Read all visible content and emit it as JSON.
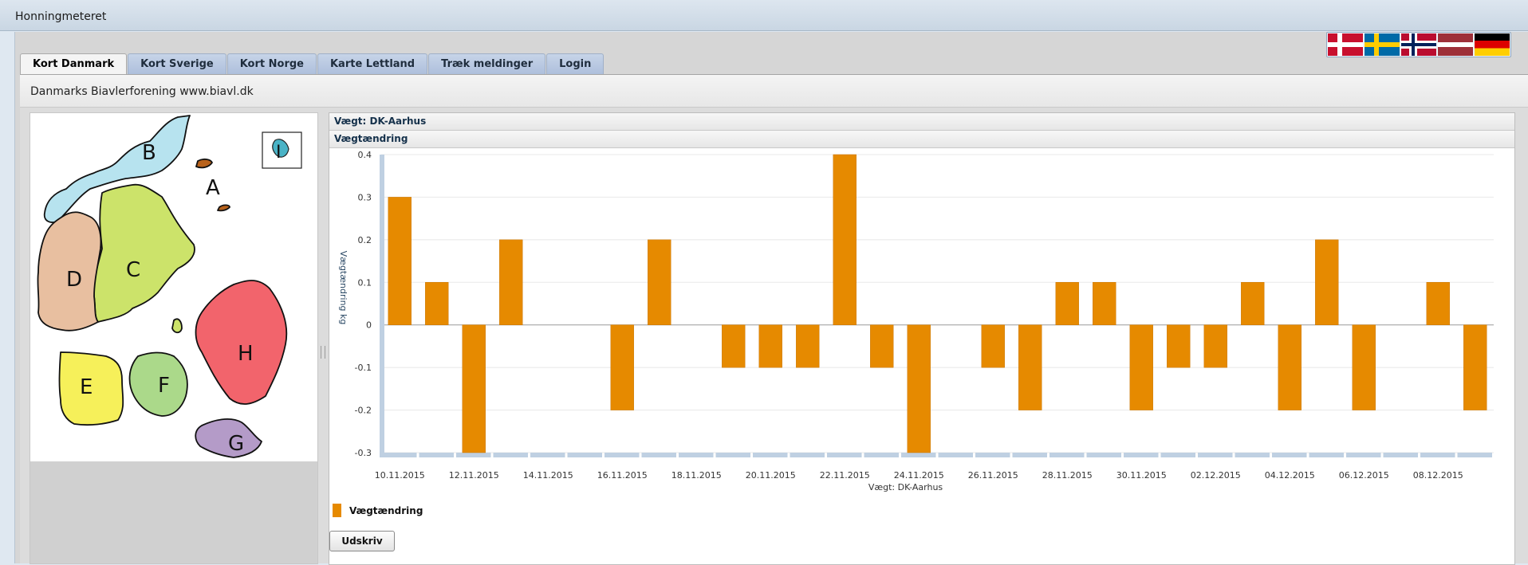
{
  "app": {
    "title": "Honningmeteret"
  },
  "flags": [
    "flag-denmark-icon",
    "flag-sweden-icon",
    "flag-norway-icon",
    "flag-latvia-icon",
    "flag-germany-icon"
  ],
  "tabs": [
    {
      "label": "Kort Danmark",
      "active": true
    },
    {
      "label": "Kort Sverige",
      "active": false
    },
    {
      "label": "Kort Norge",
      "active": false
    },
    {
      "label": "Karte Lettland",
      "active": false
    },
    {
      "label": "Træk meldinger",
      "active": false
    },
    {
      "label": "Login",
      "active": false
    }
  ],
  "org": {
    "text": "Danmarks Biavlerforening www.biavl.dk"
  },
  "map": {
    "regions": [
      "A",
      "B",
      "C",
      "D",
      "E",
      "F",
      "G",
      "H",
      "I"
    ]
  },
  "panel": {
    "header1": "Vægt: DK-Aarhus",
    "header2": "Vægtændring"
  },
  "legend": {
    "label": "Vægtændring",
    "color": "#e68a00"
  },
  "print_button": {
    "label": "Udskriv"
  },
  "chart_data": {
    "type": "bar",
    "xlabel": "Vægt: DK-Aarhus",
    "ylabel": "Vægtændring kg",
    "ylim": [
      -0.3,
      0.4
    ],
    "yticks": [
      "0.4",
      "0.3",
      "0.2",
      "0.1",
      "0",
      "-0.1",
      "-0.2",
      "-0.3"
    ],
    "tick_labels": [
      "10.11.2015",
      "12.11.2015",
      "14.11.2015",
      "16.11.2015",
      "18.11.2015",
      "20.11.2015",
      "22.11.2015",
      "24.11.2015",
      "26.11.2015",
      "28.11.2015",
      "30.11.2015",
      "02.12.2015",
      "04.12.2015",
      "06.12.2015",
      "08.12.2015"
    ],
    "categories": [
      "10.11.2015",
      "11.11.2015",
      "12.11.2015",
      "13.11.2015",
      "14.11.2015",
      "15.11.2015",
      "16.11.2015",
      "17.11.2015",
      "18.11.2015",
      "19.11.2015",
      "20.11.2015",
      "21.11.2015",
      "22.11.2015",
      "23.11.2015",
      "24.11.2015",
      "25.11.2015",
      "26.11.2015",
      "27.11.2015",
      "28.11.2015",
      "29.11.2015",
      "30.11.2015",
      "01.12.2015",
      "02.12.2015",
      "03.12.2015",
      "04.12.2015",
      "05.12.2015",
      "06.12.2015",
      "07.12.2015",
      "08.12.2015",
      "09.12.2015"
    ],
    "series": [
      {
        "name": "Vægtændring",
        "color": "#e68a00",
        "values": [
          0.3,
          0.1,
          -0.3,
          0.2,
          0,
          0,
          -0.2,
          0.2,
          0,
          -0.1,
          -0.1,
          -0.1,
          0.4,
          -0.1,
          -0.3,
          0,
          -0.1,
          -0.2,
          0.1,
          0.1,
          -0.2,
          -0.1,
          -0.1,
          0.1,
          -0.2,
          0.2,
          -0.2,
          0,
          0.1,
          -0.2
        ]
      }
    ],
    "grid": true,
    "legend": "bottom-left"
  }
}
